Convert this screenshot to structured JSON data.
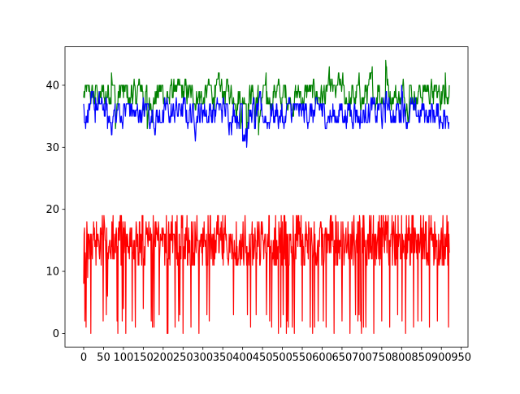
{
  "chart_data": {
    "type": "line",
    "title": "",
    "xlabel": "",
    "ylabel": "",
    "xlim": [
      -47,
      967
    ],
    "ylim": [
      -2.2,
      46.2
    ],
    "x_ticks": [
      0,
      50,
      100,
      150,
      200,
      250,
      300,
      350,
      400,
      450,
      500,
      550,
      600,
      650,
      700,
      750,
      800,
      850,
      900,
      950
    ],
    "x_tick_labels": [
      "0",
      "50",
      "100",
      "150",
      "200",
      "250",
      "300",
      "350",
      "400",
      "450",
      "500",
      "550",
      "600",
      "650",
      "700",
      "750",
      "800",
      "850",
      "900",
      "950"
    ],
    "y_ticks": [
      0,
      10,
      20,
      30,
      40
    ],
    "y_tick_labels": [
      "0",
      "10",
      "20",
      "30",
      "40"
    ],
    "grid": false,
    "legend": false,
    "x_range": [
      0,
      920
    ],
    "series": [
      {
        "name": "green",
        "color": "#008000",
        "low": 32,
        "high": 44,
        "baseline": 38.5,
        "points": [
          [
            0,
            38
          ],
          [
            10,
            40
          ],
          [
            20,
            39
          ],
          [
            40,
            38
          ],
          [
            70,
            42
          ],
          [
            80,
            33
          ],
          [
            100,
            38
          ],
          [
            120,
            40
          ],
          [
            150,
            36
          ],
          [
            160,
            33
          ],
          [
            200,
            38
          ],
          [
            230,
            40
          ],
          [
            270,
            38
          ],
          [
            300,
            37
          ],
          [
            330,
            40
          ],
          [
            380,
            37
          ],
          [
            395,
            33
          ],
          [
            410,
            31
          ],
          [
            430,
            34
          ],
          [
            440,
            32
          ],
          [
            460,
            37
          ],
          [
            500,
            38
          ],
          [
            550,
            37
          ],
          [
            600,
            38
          ],
          [
            630,
            40
          ],
          [
            660,
            38
          ],
          [
            670,
            35
          ],
          [
            700,
            38
          ],
          [
            740,
            40
          ],
          [
            760,
            44
          ],
          [
            780,
            38
          ],
          [
            820,
            40
          ],
          [
            850,
            38
          ],
          [
            880,
            37
          ],
          [
            900,
            39
          ],
          [
            910,
            42
          ],
          [
            920,
            40
          ]
        ]
      },
      {
        "name": "blue",
        "color": "#0000ff",
        "low": 30,
        "high": 41,
        "baseline": 35.5,
        "points": [
          [
            0,
            37
          ],
          [
            10,
            36
          ],
          [
            30,
            38
          ],
          [
            50,
            36
          ],
          [
            60,
            33
          ],
          [
            80,
            34
          ],
          [
            100,
            36
          ],
          [
            130,
            35
          ],
          [
            160,
            37
          ],
          [
            200,
            35
          ],
          [
            230,
            36
          ],
          [
            260,
            34
          ],
          [
            300,
            36
          ],
          [
            350,
            37
          ],
          [
            400,
            31
          ],
          [
            410,
            30
          ],
          [
            430,
            33
          ],
          [
            450,
            35
          ],
          [
            500,
            34
          ],
          [
            550,
            36
          ],
          [
            600,
            35
          ],
          [
            640,
            34
          ],
          [
            680,
            36
          ],
          [
            720,
            35
          ],
          [
            760,
            38
          ],
          [
            800,
            40
          ],
          [
            830,
            36
          ],
          [
            860,
            35
          ],
          [
            900,
            34
          ],
          [
            910,
            33
          ],
          [
            920,
            34
          ]
        ]
      },
      {
        "name": "red",
        "color": "#ff0000",
        "low": 0,
        "high": 19,
        "baseline": 13,
        "points": [
          [
            0,
            8
          ],
          [
            5,
            10
          ],
          [
            10,
            9
          ],
          [
            20,
            14
          ],
          [
            30,
            15
          ],
          [
            40,
            12
          ],
          [
            50,
            15
          ],
          [
            60,
            6
          ],
          [
            70,
            14
          ],
          [
            80,
            13
          ],
          [
            90,
            15
          ],
          [
            100,
            4
          ],
          [
            110,
            16
          ],
          [
            120,
            17
          ],
          [
            130,
            1
          ],
          [
            140,
            18
          ],
          [
            150,
            4
          ],
          [
            160,
            17
          ],
          [
            170,
            2
          ],
          [
            180,
            18
          ],
          [
            190,
            3
          ],
          [
            200,
            17
          ],
          [
            210,
            0
          ],
          [
            220,
            18
          ],
          [
            230,
            1
          ],
          [
            240,
            16
          ],
          [
            250,
            0
          ],
          [
            260,
            19
          ],
          [
            270,
            1
          ],
          [
            280,
            18
          ],
          [
            290,
            0
          ],
          [
            300,
            17
          ],
          [
            310,
            3
          ],
          [
            320,
            14
          ],
          [
            340,
            13
          ],
          [
            360,
            14
          ],
          [
            380,
            13
          ],
          [
            400,
            14
          ],
          [
            420,
            1
          ],
          [
            440,
            16
          ],
          [
            460,
            3
          ],
          [
            480,
            17
          ],
          [
            490,
            0
          ],
          [
            500,
            18
          ],
          [
            510,
            0
          ],
          [
            520,
            16
          ],
          [
            530,
            0
          ],
          [
            540,
            18
          ],
          [
            550,
            2
          ],
          [
            560,
            17
          ],
          [
            570,
            1
          ],
          [
            580,
            18
          ],
          [
            590,
            2
          ],
          [
            600,
            17
          ],
          [
            610,
            1
          ],
          [
            620,
            18
          ],
          [
            630,
            0
          ],
          [
            640,
            18
          ],
          [
            650,
            2
          ],
          [
            660,
            17
          ],
          [
            670,
            0
          ],
          [
            680,
            19
          ],
          [
            690,
            2
          ],
          [
            700,
            17
          ],
          [
            710,
            1
          ],
          [
            720,
            18
          ],
          [
            730,
            0
          ],
          [
            740,
            16
          ],
          [
            750,
            2
          ],
          [
            760,
            19
          ],
          [
            770,
            1
          ],
          [
            780,
            18
          ],
          [
            790,
            3
          ],
          [
            800,
            19
          ],
          [
            810,
            0
          ],
          [
            820,
            17
          ],
          [
            830,
            1
          ],
          [
            840,
            16
          ],
          [
            850,
            2
          ],
          [
            860,
            18
          ],
          [
            870,
            1
          ],
          [
            880,
            16
          ],
          [
            890,
            2
          ],
          [
            900,
            17
          ],
          [
            905,
            11
          ],
          [
            910,
            12
          ],
          [
            915,
            15
          ],
          [
            920,
            13
          ]
        ]
      }
    ]
  }
}
